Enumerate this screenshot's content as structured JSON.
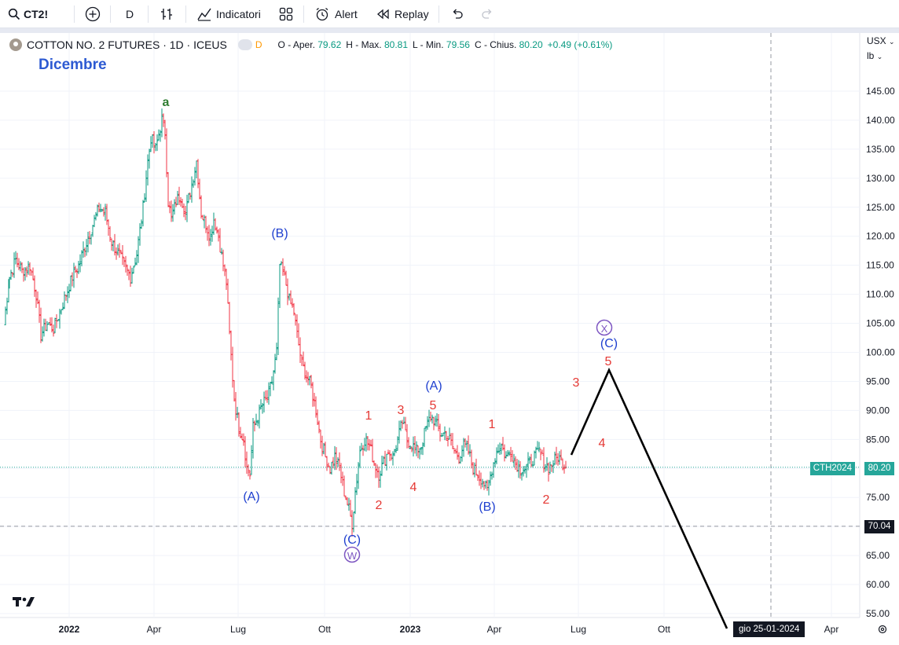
{
  "toolbar": {
    "symbol": "CT2!",
    "interval": "D",
    "indicators_label": "Indicatori",
    "alert_label": "Alert",
    "replay_label": "Replay"
  },
  "legend": {
    "title": "COTTON NO. 2 FUTURES · 1D · ICEUS",
    "mode_badge": "D",
    "o_label": "O - Aper.",
    "o_value": "79.62",
    "h_label": "H - Max.",
    "h_value": "80.81",
    "l_label": "L - Min.",
    "l_value": "79.56",
    "c_label": "C - Chius.",
    "c_value": "80.20",
    "change": "+0.49 (+0.61%)"
  },
  "annotation_title": "Dicembre",
  "price_axis": {
    "currency": "USX",
    "unit": "lb",
    "ticks": [
      "145.00",
      "140.00",
      "135.00",
      "130.00",
      "125.00",
      "120.00",
      "115.00",
      "110.00",
      "105.00",
      "100.00",
      "95.00",
      "90.00",
      "85.00",
      "80.00",
      "75.00",
      "70.00",
      "65.00",
      "60.00",
      "55.00"
    ]
  },
  "time_axis": {
    "ticks": [
      "2022",
      "Apr",
      "Lug",
      "Ott",
      "2023",
      "Apr",
      "Lug",
      "Ott",
      "Apr"
    ],
    "crosshair_label": "gio 25-01-2024"
  },
  "price_labels": {
    "symbol_tag": "CTH2024",
    "last_price": "80.20",
    "crosshair_price": "70.04"
  },
  "wave_labels": [
    {
      "text": "a",
      "color": "#2e7d32"
    },
    {
      "text": "(B)",
      "color": "#1e3fcf"
    },
    {
      "text": "(A)",
      "color": "#1e3fcf"
    },
    {
      "text": "(C)",
      "color": "#1e3fcf"
    },
    {
      "text": "W",
      "color": "#7e57c2"
    },
    {
      "text": "1",
      "color": "#e53935"
    },
    {
      "text": "2",
      "color": "#e53935"
    },
    {
      "text": "3",
      "color": "#e53935"
    },
    {
      "text": "4",
      "color": "#e53935"
    },
    {
      "text": "5",
      "color": "#e53935"
    },
    {
      "text": "(A)",
      "color": "#1e3fcf"
    },
    {
      "text": "1",
      "color": "#e53935"
    },
    {
      "text": "2",
      "color": "#e53935"
    },
    {
      "text": "(B)",
      "color": "#1e3fcf"
    },
    {
      "text": "3",
      "color": "#e53935"
    },
    {
      "text": "4",
      "color": "#e53935"
    },
    {
      "text": "5",
      "color": "#e53935"
    },
    {
      "text": "(C)",
      "color": "#1e3fcf"
    },
    {
      "text": "X",
      "color": "#7e57c2"
    }
  ],
  "colors": {
    "up": "#089981",
    "down": "#f23645",
    "wave_blue": "#1e3fcf",
    "wave_red": "#e53935",
    "wave_green": "#2e7d32",
    "wave_purple": "#7e57c2",
    "projection": "#000000"
  }
}
